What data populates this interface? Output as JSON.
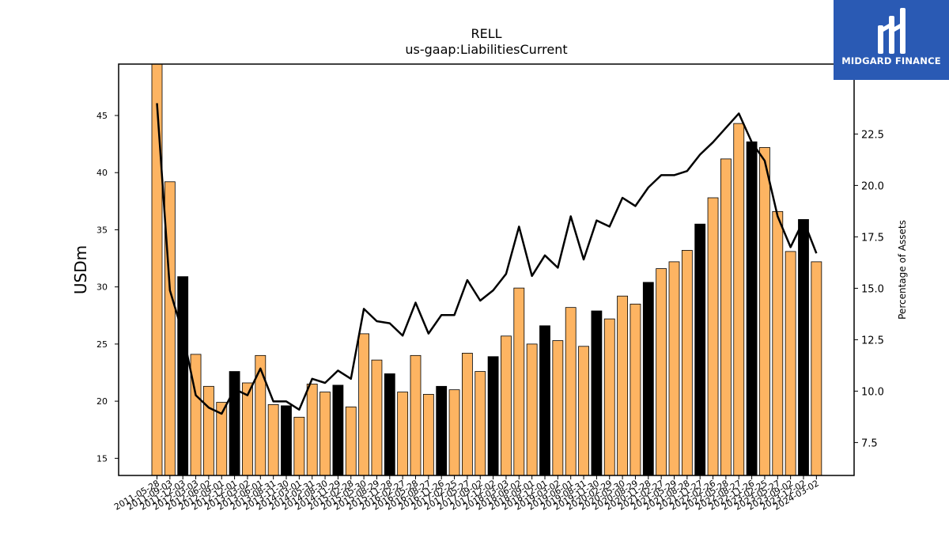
{
  "brand": {
    "name": "MIDGARD FINANCE",
    "logo_icon": "midgard-logo-icon",
    "color": "#2a5ab4"
  },
  "chart_data": {
    "type": "bar",
    "title": "RELL",
    "subtitle": "us-gaap:LiabilitiesCurrent",
    "ylabel": "USDm",
    "y2label": "Percentage of Assets",
    "ylim": [
      13.5,
      49.5
    ],
    "y2lim": [
      5.9,
      25.9
    ],
    "yticks": [
      15,
      20,
      25,
      30,
      35,
      40,
      45
    ],
    "y2ticks": [
      7.5,
      10.0,
      12.5,
      15.0,
      17.5,
      20.0,
      22.5
    ],
    "bar_color": "#fdb462",
    "highlight_color": "#000000",
    "line_color": "#000000",
    "categories": [
      "2011-05-28",
      "2011-09-03",
      "2011-12-03",
      "2012-03-03",
      "2012-06-02",
      "2012-09-01",
      "2012-12-01",
      "2013-03-02",
      "2013-06-01",
      "2013-08-31",
      "2013-11-30",
      "2014-03-01",
      "2014-05-31",
      "2014-08-30",
      "2014-11-29",
      "2015-02-28",
      "2015-05-30",
      "2015-08-29",
      "2015-11-28",
      "2016-02-27",
      "2016-05-28",
      "2016-08-27",
      "2016-11-26",
      "2017-02-25",
      "2017-05-27",
      "2017-09-02",
      "2017-12-02",
      "2018-03-03",
      "2018-06-02",
      "2018-09-01",
      "2018-12-01",
      "2019-03-02",
      "2019-06-01",
      "2019-08-31",
      "2019-11-30",
      "2020-02-29",
      "2020-05-30",
      "2020-08-29",
      "2020-11-28",
      "2021-02-27",
      "2021-05-29",
      "2021-08-28",
      "2021-11-27",
      "2022-02-26",
      "2022-05-28",
      "2022-08-27",
      "2022-11-26",
      "2023-02-25",
      "2023-05-27",
      "2023-09-02",
      "2023-12-02",
      "2024-03-02"
    ],
    "tick_labels": [
      "2011-05-28",
      "2011-09-03",
      "2011-12-03",
      "2012-03-03",
      "2012-06-02",
      "2012-09-01",
      "2012-12-01",
      "2013-03-02",
      "2013-06-01",
      "2013-08-31",
      "2013-11-30",
      "2014-03-01",
      "2014-05-31",
      "2014-08-30",
      "2014-11-29",
      "2015-02-28",
      "2015-05-30",
      "2015-08-29",
      "2015-11-28",
      "2016-02-27",
      "2016-05-28",
      "2016-08-27",
      "2016-11-26",
      "2017-02-25",
      "2017-05-27",
      "2017-09-02",
      "2017-12-02",
      "2018-03-03",
      "2018-06-02",
      "2018-09-01",
      "2018-12-01",
      "2019-03-02",
      "2019-06-01",
      "2019-08-31",
      "2019-11-30",
      "2020-02-29",
      "2020-05-30",
      "2020-08-29",
      "2020-11-28",
      "2021-02-27",
      "2021-05-29",
      "2021-08-28",
      "2021-11-27",
      "2022-02-26",
      "2022-05-28",
      "2022-08-27",
      "2022-11-26",
      "2023-02-25",
      "2023-05-27",
      "2023-09-02",
      "2023-12-02",
      "2024-03-02"
    ],
    "series": [
      {
        "type": "bar",
        "axis": "left",
        "values": [
          49.6,
          39.2,
          30.9,
          24.1,
          21.3,
          19.9,
          22.6,
          21.6,
          24.0,
          19.7,
          19.6,
          18.6,
          21.5,
          20.8,
          21.4,
          19.5,
          25.9,
          23.6,
          22.4,
          20.8,
          24.0,
          20.6,
          21.3,
          21.0,
          24.2,
          22.6,
          23.9,
          25.7,
          29.9,
          25.0,
          26.6,
          25.3,
          28.2,
          24.8,
          27.9,
          27.2,
          29.2,
          28.5,
          30.4,
          31.6,
          32.2,
          33.2,
          35.5,
          37.8,
          41.2,
          44.3,
          42.7,
          42.2,
          36.6,
          33.1,
          35.9,
          32.2
        ],
        "highlight": [
          false,
          false,
          true,
          false,
          false,
          false,
          true,
          false,
          false,
          false,
          true,
          false,
          false,
          false,
          true,
          false,
          false,
          false,
          true,
          false,
          false,
          false,
          true,
          false,
          false,
          false,
          true,
          false,
          false,
          false,
          true,
          false,
          false,
          false,
          true,
          false,
          false,
          false,
          true,
          false,
          false,
          false,
          true,
          false,
          false,
          false,
          true,
          false,
          false,
          false,
          true,
          false
        ]
      },
      {
        "type": "line",
        "axis": "right",
        "values": [
          24.0,
          14.9,
          12.8,
          9.8,
          9.2,
          8.9,
          10.1,
          9.8,
          11.1,
          9.5,
          9.5,
          9.1,
          10.6,
          10.4,
          11.0,
          10.6,
          14.0,
          13.4,
          13.3,
          12.7,
          14.3,
          12.8,
          13.7,
          13.7,
          15.4,
          14.4,
          14.9,
          15.7,
          18.0,
          15.6,
          16.6,
          16.0,
          18.5,
          16.4,
          18.3,
          18.0,
          19.4,
          19.0,
          19.9,
          20.5,
          20.5,
          20.7,
          21.5,
          22.1,
          22.8,
          23.5,
          22.1,
          21.2,
          18.5,
          17.0,
          18.3,
          16.7
        ]
      }
    ]
  }
}
